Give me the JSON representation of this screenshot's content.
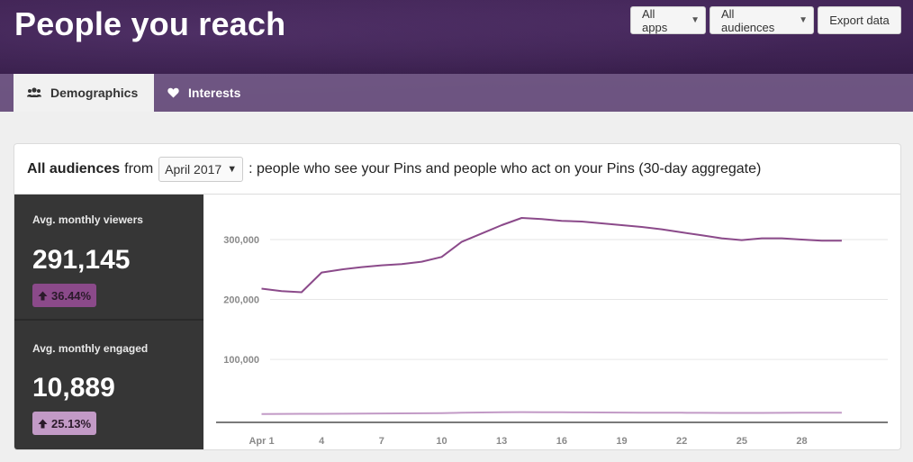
{
  "header": {
    "title": "People you reach",
    "apps_select": "All apps",
    "audiences_select": "All audiences",
    "export_label": "Export data"
  },
  "tabs": [
    {
      "label": "Demographics",
      "icon": "people-icon",
      "active": true
    },
    {
      "label": "Interests",
      "icon": "heart-icon",
      "active": false
    }
  ],
  "card": {
    "title_bold": "All audiences",
    "from_text": "from",
    "month": "April 2017",
    "description": ": people who see your Pins and people who act on your Pins (30-day aggregate)"
  },
  "stats": [
    {
      "label": "Avg. monthly viewers",
      "value": "291,145",
      "change": "36.44%",
      "color": "#8b4a8a"
    },
    {
      "label": "Avg. monthly engaged",
      "value": "10,889",
      "change": "25.13%",
      "color": "#c29ac6"
    }
  ],
  "chart_data": {
    "type": "line",
    "x_tick_labels": [
      "Apr 1",
      "4",
      "7",
      "10",
      "13",
      "16",
      "19",
      "22",
      "25",
      "28"
    ],
    "x_ticks": [
      1,
      4,
      7,
      10,
      13,
      16,
      19,
      22,
      25,
      28
    ],
    "y_tick_labels": [
      "300,000",
      "200,000",
      "100,000"
    ],
    "y_ticks": [
      300000,
      200000,
      100000
    ],
    "ylim": [
      -5000,
      345000
    ],
    "xlim": [
      0,
      31
    ],
    "grid": true,
    "series": [
      {
        "color": "#8b4a8a",
        "x": [
          1,
          2,
          3,
          4,
          5,
          6,
          7,
          8,
          9,
          10,
          11,
          12,
          13,
          14,
          15,
          16,
          17,
          18,
          19,
          20,
          21,
          22,
          23,
          24,
          25,
          26,
          27,
          28,
          29,
          30
        ],
        "values": [
          218000,
          214000,
          212000,
          245000,
          250000,
          254000,
          257000,
          259000,
          263000,
          271000,
          296000,
          310000,
          324000,
          336000,
          334000,
          331000,
          330000,
          327000,
          324000,
          321000,
          317000,
          312000,
          307000,
          302000,
          299000,
          302000,
          302000,
          300000,
          298000,
          298000
        ]
      },
      {
        "color": "#c29ac6",
        "x": [
          1,
          2,
          3,
          4,
          5,
          6,
          7,
          8,
          9,
          10,
          11,
          12,
          13,
          14,
          15,
          16,
          17,
          18,
          19,
          20,
          21,
          22,
          23,
          24,
          25,
          26,
          27,
          28,
          29,
          30
        ],
        "values": [
          9000,
          9100,
          9200,
          9300,
          9400,
          9600,
          9800,
          10000,
          10100,
          10400,
          11000,
          11500,
          11800,
          12100,
          12000,
          11800,
          11600,
          11500,
          11300,
          11200,
          11100,
          11000,
          10900,
          10800,
          10800,
          10800,
          10900,
          11000,
          11100,
          11200
        ]
      }
    ]
  }
}
